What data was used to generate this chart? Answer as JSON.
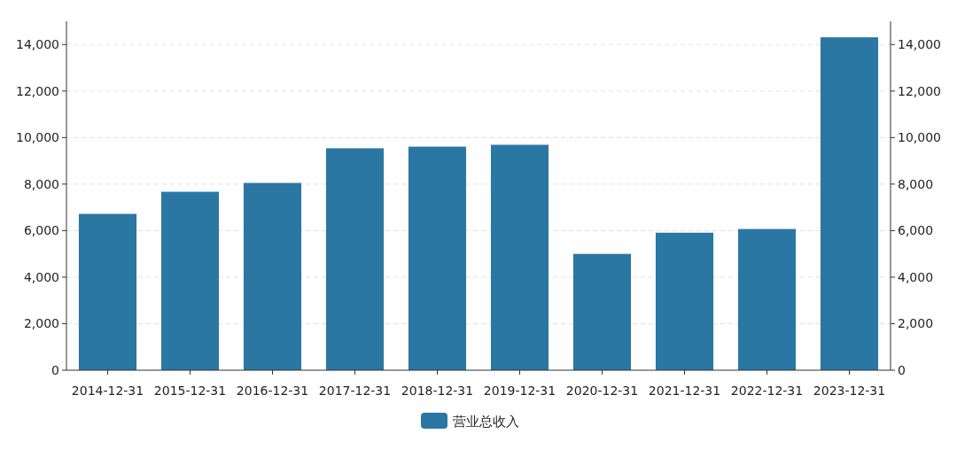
{
  "chart_data": {
    "type": "bar",
    "categories": [
      "2014-12-31",
      "2015-12-31",
      "2016-12-31",
      "2017-12-31",
      "2018-12-31",
      "2019-12-31",
      "2020-12-31",
      "2021-12-31",
      "2022-12-31",
      "2023-12-31"
    ],
    "series": [
      {
        "name": "营业总收入",
        "color": "#2b77a3",
        "values": [
          6720,
          7670,
          8050,
          9540,
          9610,
          9690,
          5000,
          5910,
          6070,
          14310
        ]
      }
    ],
    "ylim": [
      0,
      15000
    ],
    "yticks": [
      0,
      {
        "value": 2000,
        "label": "2,000"
      },
      {
        "value": 4000,
        "label": "4,000"
      },
      {
        "value": 6000,
        "label": "6,000"
      },
      {
        "value": 8000,
        "label": "8,000"
      },
      {
        "value": 10000,
        "label": "10,000"
      },
      {
        "value": 12000,
        "label": "12,000"
      },
      {
        "value": 14000,
        "label": "14,000"
      }
    ],
    "y2lim": [
      0,
      15000
    ],
    "y2ticks": [
      0,
      {
        "value": 2000,
        "label": "2,000"
      },
      {
        "value": 4000,
        "label": "4,000"
      },
      {
        "value": 6000,
        "label": "6,000"
      },
      {
        "value": 8000,
        "label": "8,000"
      },
      {
        "value": 10000,
        "label": "10,000"
      },
      {
        "value": 12000,
        "label": "12,000"
      },
      {
        "value": 14000,
        "label": "14,000"
      }
    ],
    "grid": "y",
    "legend": "bottom"
  }
}
